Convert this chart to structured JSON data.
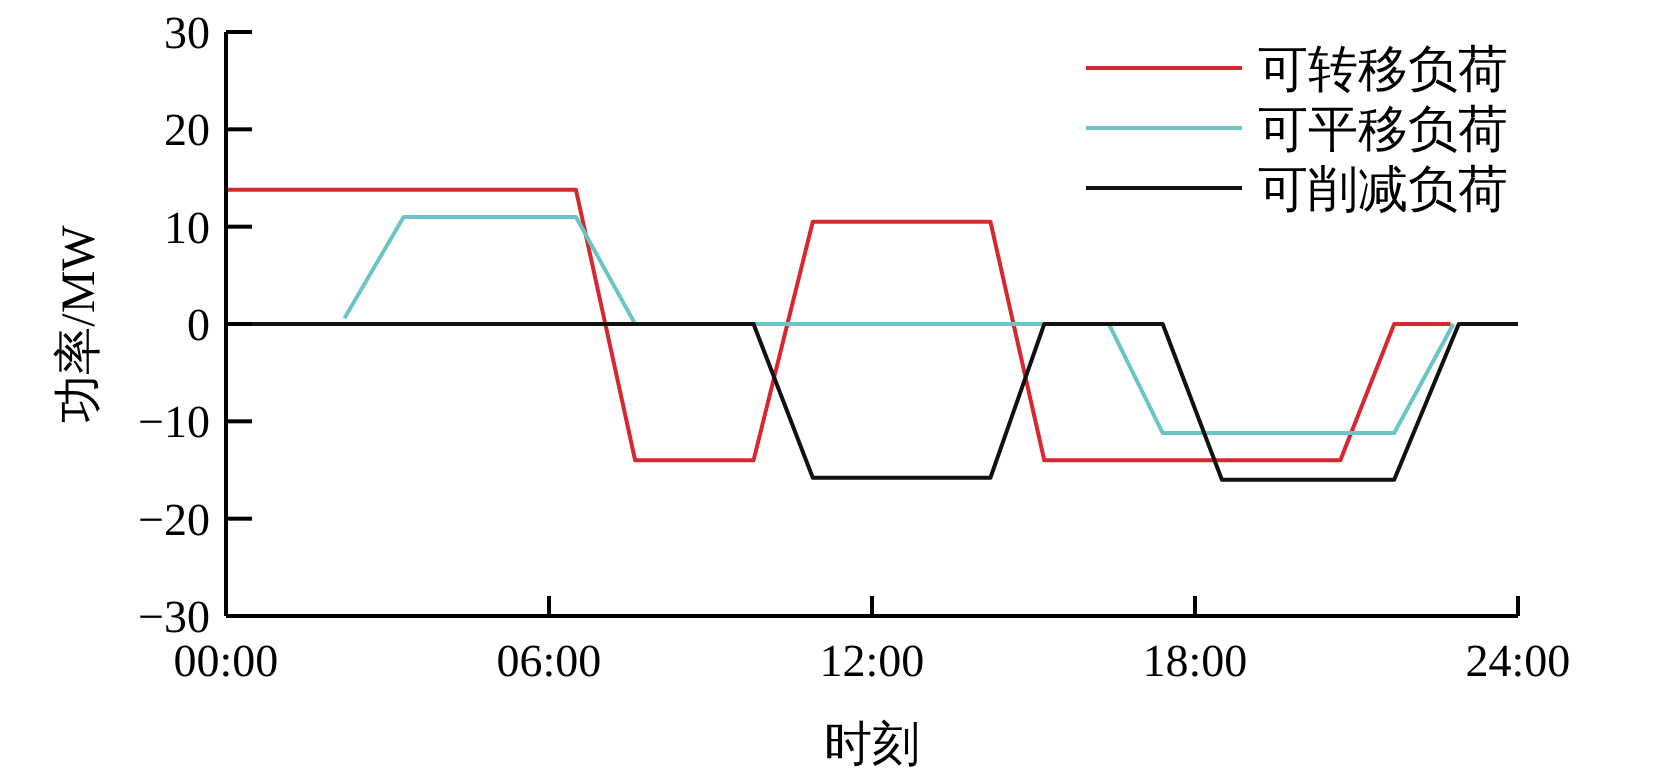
{
  "chart_data": {
    "type": "line",
    "xlabel": "时刻",
    "ylabel": "功率/MW",
    "xlim": [
      0,
      24
    ],
    "ylim": [
      -30,
      30
    ],
    "xticks": [
      {
        "value": 0,
        "label": "00:00"
      },
      {
        "value": 6,
        "label": "06:00"
      },
      {
        "value": 12,
        "label": "12:00"
      },
      {
        "value": 18,
        "label": "18:00"
      },
      {
        "value": 24,
        "label": "24:00"
      }
    ],
    "yticks": [
      -30,
      -20,
      -10,
      0,
      10,
      20,
      30
    ],
    "grid": false,
    "legend": "top right",
    "marker": "none",
    "line_style": "solid",
    "series": [
      {
        "name": "可转移负荷",
        "color": "#d7282f",
        "x": [
          0,
          6.5,
          7.6,
          9.8,
          10.9,
          14.2,
          15.2,
          20.7,
          21.7,
          22.75
        ],
        "values": [
          13.8,
          13.8,
          -14,
          -14,
          10.5,
          10.5,
          -14,
          -14,
          0,
          0
        ]
      },
      {
        "name": "可平移负荷",
        "color": "#6cc5c5",
        "x": [
          2.2,
          3.3,
          6.5,
          7.6,
          16.4,
          17.4,
          21.7,
          22.8
        ],
        "values": [
          0.6,
          11,
          11,
          0,
          0,
          -11.2,
          -11.2,
          0
        ]
      },
      {
        "name": "可削减负荷",
        "color": "#111111",
        "x": [
          0,
          9.8,
          10.9,
          14.2,
          15.2,
          17.4,
          18.5,
          21.7,
          22.9,
          24
        ],
        "values": [
          0,
          0,
          -15.8,
          -15.8,
          0,
          0,
          -16,
          -16,
          0,
          0
        ]
      }
    ]
  }
}
